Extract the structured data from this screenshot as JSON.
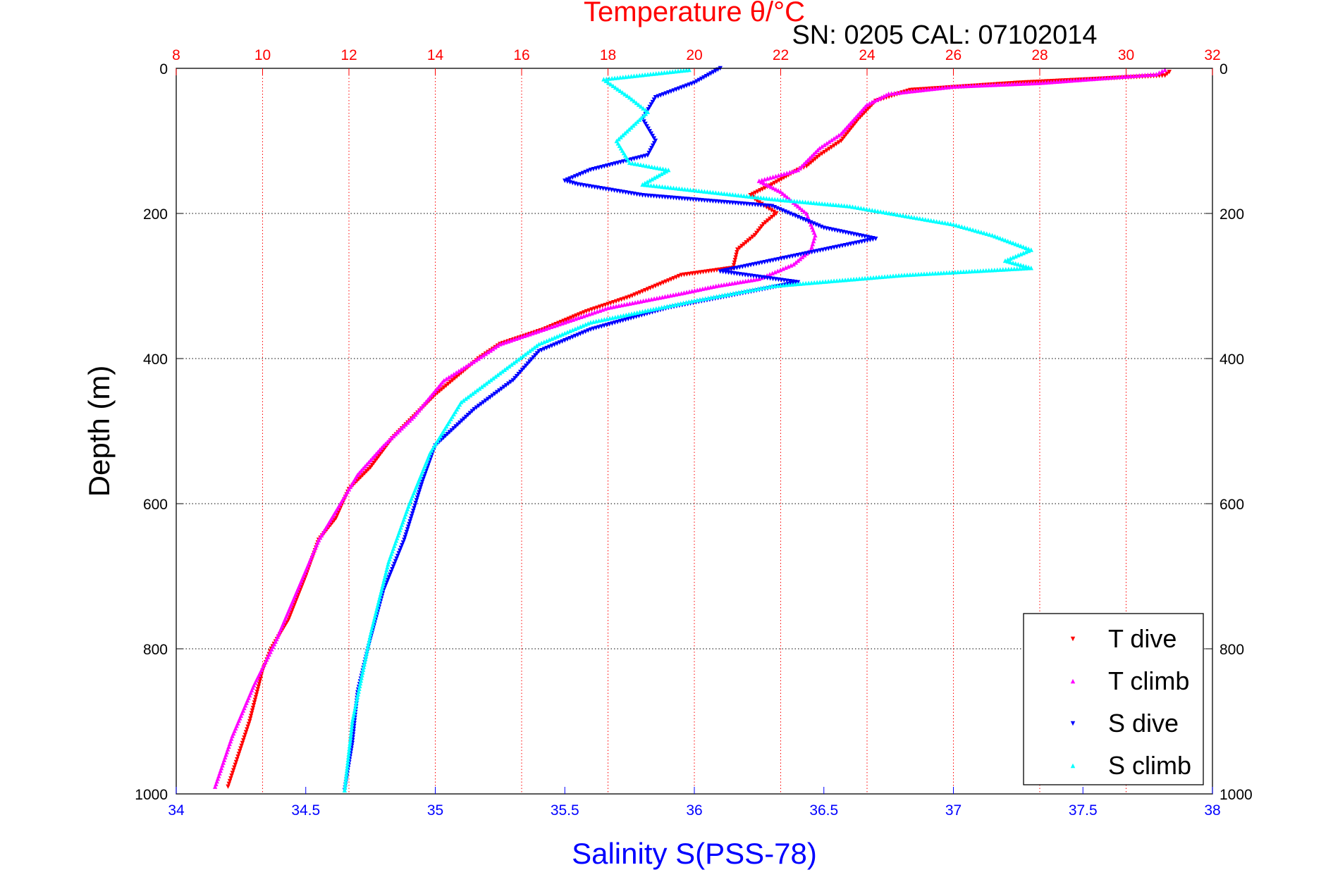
{
  "chart_data": {
    "type": "scatter",
    "title": "Temperature θ/°C",
    "subtitle": "SN: 0205  CAL: 07102014",
    "xlabel": "Salinity S(PSS-78)",
    "ylabel": "Depth (m)",
    "x_top": {
      "label": "Temperature θ/°C",
      "range": [
        8,
        32
      ],
      "ticks": [
        8,
        10,
        12,
        14,
        16,
        18,
        20,
        22,
        24,
        26,
        28,
        30,
        32
      ],
      "color": "#ff0000"
    },
    "x_bottom": {
      "label": "Salinity S(PSS-78)",
      "range": [
        34,
        38
      ],
      "ticks": [
        "34",
        "34.5",
        "35",
        "35.5",
        "36",
        "36.5",
        "37",
        "37.5",
        "38"
      ],
      "color": "#0000ff"
    },
    "y": {
      "label": "Depth (m)",
      "range": [
        0,
        1000
      ],
      "reversed": true,
      "ticks": [
        0,
        200,
        400,
        600,
        800,
        1000
      ]
    },
    "grid": true,
    "legend_position": "bottom-right",
    "series": [
      {
        "name": "T dive",
        "axis": "top",
        "color": "#ff0000",
        "marker": "triangle-down",
        "x": [
          31.0,
          30.9,
          27.5,
          25.0,
          24.2,
          23.8,
          23.4,
          22.9,
          22.6,
          22.4,
          21.8,
          21.3,
          21.5,
          21.9,
          21.6,
          21.4,
          21.0,
          20.9,
          19.7,
          18.5,
          17.5,
          16.5,
          15.5,
          15.0,
          14.0,
          13.5,
          13.0,
          12.5,
          12.0,
          11.7,
          11.3,
          11.0,
          10.6,
          10.2,
          10.0,
          9.7,
          9.2
        ],
        "y": [
          5,
          10,
          20,
          30,
          45,
          70,
          100,
          120,
          135,
          140,
          160,
          175,
          185,
          200,
          215,
          230,
          250,
          275,
          285,
          315,
          335,
          360,
          380,
          400,
          450,
          480,
          510,
          550,
          580,
          620,
          650,
          700,
          760,
          800,
          830,
          900,
          990
        ]
      },
      {
        "name": "T climb",
        "axis": "top",
        "color": "#ff00ff",
        "marker": "triangle-up",
        "x": [
          30.9,
          30.7,
          28.0,
          26.0,
          24.5,
          24.0,
          23.4,
          22.9,
          22.4,
          21.5,
          22.0,
          22.6,
          22.8,
          22.7,
          22.3,
          21.5,
          20.5,
          19.7,
          18.0,
          16.5,
          15.5,
          15.0,
          14.2,
          13.5,
          12.8,
          12.2,
          11.8,
          11.3,
          10.8,
          10.3,
          9.8,
          9.3,
          8.9
        ],
        "y": [
          2,
          8,
          20,
          25,
          35,
          50,
          90,
          110,
          140,
          155,
          170,
          200,
          230,
          250,
          270,
          290,
          300,
          310,
          330,
          360,
          380,
          400,
          430,
          480,
          520,
          560,
          600,
          650,
          720,
          790,
          850,
          920,
          990
        ]
      },
      {
        "name": "S dive",
        "axis": "bottom",
        "color": "#0000ff",
        "marker": "triangle-down",
        "x": [
          36.1,
          36.0,
          35.85,
          35.8,
          35.85,
          35.82,
          35.6,
          35.5,
          35.55,
          35.8,
          36.3,
          36.5,
          36.7,
          36.1,
          36.4,
          35.9,
          35.6,
          35.4,
          35.3,
          35.15,
          35.0,
          34.95,
          34.88,
          34.8,
          34.74,
          34.7,
          34.68,
          34.65
        ],
        "y": [
          0,
          20,
          40,
          70,
          100,
          120,
          140,
          155,
          160,
          175,
          190,
          220,
          235,
          280,
          295,
          330,
          360,
          390,
          430,
          470,
          520,
          570,
          650,
          720,
          800,
          860,
          930,
          995
        ]
      },
      {
        "name": "S climb",
        "axis": "bottom",
        "color": "#00ffff",
        "marker": "triangle-up",
        "x": [
          35.98,
          35.65,
          35.75,
          35.82,
          35.7,
          35.75,
          35.9,
          35.8,
          36.3,
          36.6,
          37.0,
          37.15,
          37.3,
          37.2,
          37.3,
          36.8,
          36.3,
          36.0,
          35.6,
          35.4,
          35.25,
          35.1,
          34.98,
          34.9,
          34.82,
          34.75,
          34.68,
          34.65
        ],
        "y": [
          2,
          15,
          40,
          60,
          100,
          130,
          140,
          160,
          180,
          190,
          215,
          230,
          250,
          265,
          275,
          285,
          300,
          320,
          350,
          380,
          420,
          460,
          530,
          600,
          680,
          780,
          900,
          995
        ]
      }
    ]
  }
}
